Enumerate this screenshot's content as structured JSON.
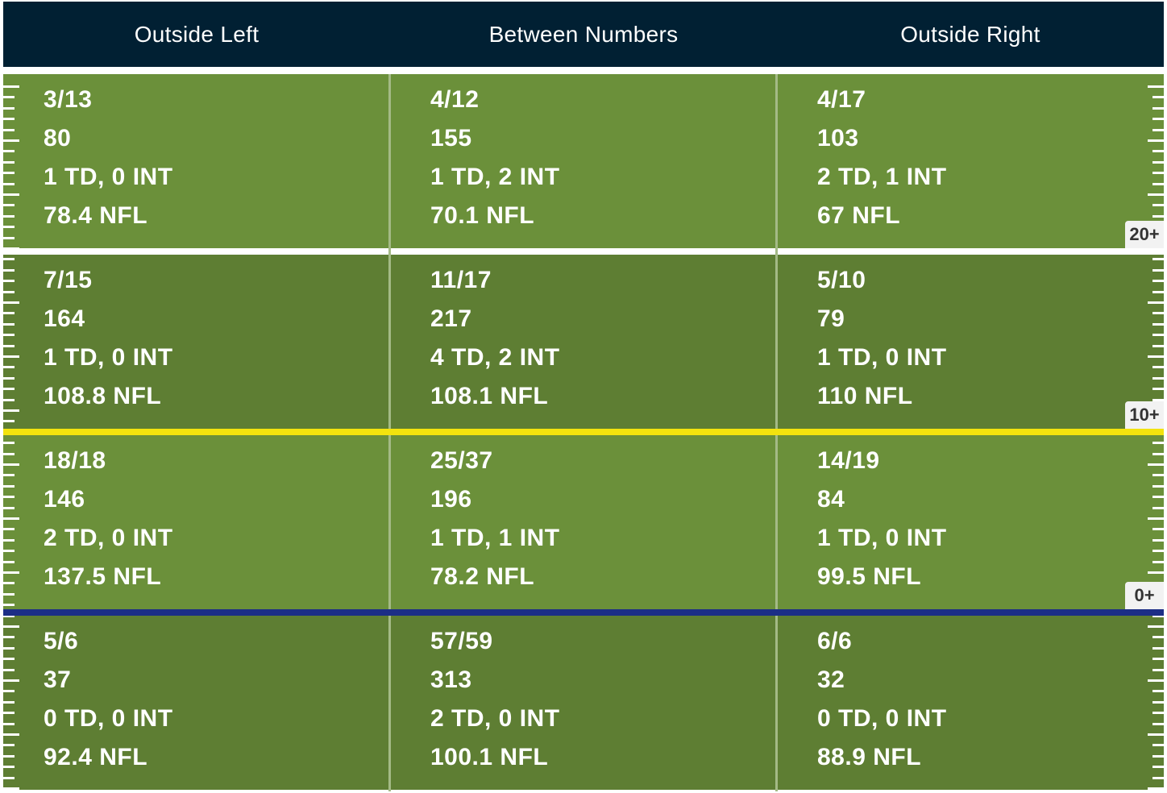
{
  "chart_data": {
    "type": "table",
    "columns": [
      "Outside Left",
      "Between Numbers",
      "Outside Right"
    ],
    "rows": [
      {
        "marker": "20+",
        "cells": [
          [
            "3/13",
            "80",
            "1 TD, 0 INT",
            "78.4 NFL"
          ],
          [
            "4/12",
            "155",
            "1 TD, 2 INT",
            "70.1 NFL"
          ],
          [
            "4/17",
            "103",
            "2 TD, 1 INT",
            "67 NFL"
          ]
        ]
      },
      {
        "marker": "10+",
        "cells": [
          [
            "7/15",
            "164",
            "1 TD, 0 INT",
            "108.8 NFL"
          ],
          [
            "11/17",
            "217",
            "4 TD, 2 INT",
            "108.1 NFL"
          ],
          [
            "5/10",
            "79",
            "1 TD, 0 INT",
            "110 NFL"
          ]
        ]
      },
      {
        "marker": "0+",
        "cells": [
          [
            "18/18",
            "146",
            "2 TD, 0 INT",
            "137.5 NFL"
          ],
          [
            "25/37",
            "196",
            "1 TD, 1 INT",
            "78.2 NFL"
          ],
          [
            "14/19",
            "84",
            "1 TD, 0 INT",
            "99.5 NFL"
          ]
        ]
      },
      {
        "marker": "",
        "cells": [
          [
            "5/6",
            "37",
            "0 TD, 0 INT",
            "92.4 NFL"
          ],
          [
            "57/59",
            "313",
            "2 TD, 0 INT",
            "100.1 NFL"
          ],
          [
            "6/6",
            "32",
            "0 TD, 0 INT",
            "88.9 NFL"
          ]
        ]
      }
    ],
    "colors": {
      "header_bg": "#012033",
      "field_light": "#6b903a",
      "field_dark": "#5e7e33",
      "first_down_line": "#f3e30e",
      "line_of_scrimmage": "#1c2e86",
      "yard_marker_bg": "#f2f2f2"
    }
  }
}
